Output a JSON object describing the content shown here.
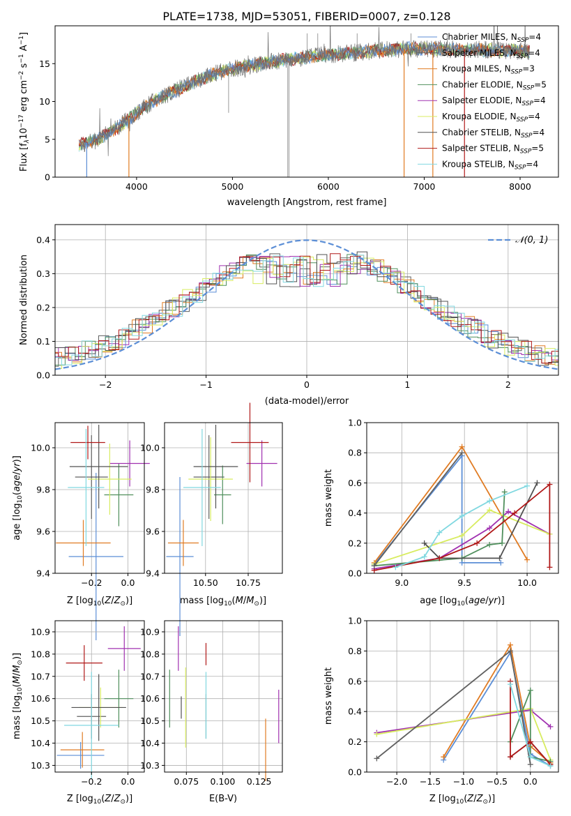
{
  "title": "PLATE=1738, MJD=53051, FIBERID=0007, z=0.128",
  "colors": {
    "chabrier_miles": "#5b8ed6",
    "salpeter_miles": "#606060",
    "kroupa_miles": "#e07b22",
    "chabrier_elodie": "#4f8f5c",
    "salpeter_elodie": "#a030b0",
    "kroupa_elodie": "#d8ec60",
    "chabrier_stelib": "#505050",
    "salpeter_stelib": "#b01818",
    "kroupa_stelib": "#80d8e0",
    "spectrum": "#707070",
    "normal": "#5b8ed6",
    "grid": "#b0b0b0"
  },
  "chart_data": [
    {
      "type": "line",
      "name": "spectrum",
      "title": "PLATE=1738, MJD=53051, FIBERID=0007, z=0.128",
      "xlabel": "wavelength [Angstrom, rest frame]",
      "ylabel_parts": [
        "Flux [f",
        "λ",
        "10",
        "−17",
        " erg cm",
        "−2",
        " s",
        "−1",
        " A",
        "−1",
        "]"
      ],
      "xlim": [
        3150,
        8400
      ],
      "ylim": [
        0,
        20
      ],
      "xticks": [
        4000,
        5000,
        6000,
        7000,
        8000
      ],
      "yticks": [
        0,
        5,
        10,
        15
      ],
      "legend_position": "right",
      "legend": [
        {
          "key": "chabrier_miles",
          "label": "Chabrier MILES, N",
          "sub": "SSP",
          "val": "=4"
        },
        {
          "key": "salpeter_miles",
          "label": "Salpeter MILES, N",
          "sub": "SSP",
          "val": "=4"
        },
        {
          "key": "kroupa_miles",
          "label": "Kroupa MILES, N",
          "sub": "SSP",
          "val": "=3"
        },
        {
          "key": "chabrier_elodie",
          "label": "Chabrier ELODIE, N",
          "sub": "SSP",
          "val": "=5"
        },
        {
          "key": "salpeter_elodie",
          "label": "Salpeter ELODIE, N",
          "sub": "SSP",
          "val": "=4"
        },
        {
          "key": "kroupa_elodie",
          "label": "Kroupa ELODIE, N",
          "sub": "SSP",
          "val": "=4"
        },
        {
          "key": "chabrier_stelib",
          "label": "Chabrier STELIB, N",
          "sub": "SSP",
          "val": "=4"
        },
        {
          "key": "salpeter_stelib",
          "label": "Salpeter STELIB, N",
          "sub": "SSP",
          "val": "=5"
        },
        {
          "key": "kroupa_stelib",
          "label": "Kroupa STELIB, N",
          "sub": "SSP",
          "val": "=4"
        }
      ],
      "continuum": {
        "x": [
          3400,
          3600,
          3800,
          4000,
          4200,
          4500,
          4800,
          5000,
          5300,
          5600,
          6000,
          6400,
          6800,
          7200,
          7600,
          8000,
          8100
        ],
        "y": [
          4.2,
          5.0,
          6.5,
          8.5,
          10.2,
          12.0,
          13.6,
          14.3,
          15.0,
          15.6,
          16.2,
          16.6,
          17.0,
          16.9,
          16.8,
          16.7,
          16.6
        ]
      },
      "drops": [
        {
          "model": "chabrier_miles",
          "x": 3480
        },
        {
          "model": "kroupa_miles",
          "x": 3920
        },
        {
          "model": "kroupa_miles",
          "x": 6790
        },
        {
          "model": "salpeter_stelib",
          "x": 7420
        },
        {
          "model": "kroupa_miles",
          "x": 7090
        }
      ]
    },
    {
      "type": "bar",
      "name": "residual histogram",
      "xlabel": "(data-model)/error",
      "ylabel": "Normed distribution",
      "xlim": [
        -2.5,
        2.5
      ],
      "ylim": [
        0,
        0.445
      ],
      "xticks": [
        -2,
        -1,
        0,
        1,
        2
      ],
      "yticks": [
        0.0,
        0.1,
        0.2,
        0.3,
        0.4
      ],
      "bin_width": 0.1,
      "legend": {
        "label": "𝒩(0, 1)",
        "position": "top-right"
      }
    },
    {
      "type": "scatter",
      "name": "age vs Z",
      "xlabel": "Z [log10(Z/Z☉)]",
      "ylabel": "age [log10(age/yr)]",
      "xlim": [
        -0.4,
        0.09
      ],
      "ylim": [
        9.4,
        10.12
      ],
      "xticks": [
        -0.2,
        0.0
      ],
      "yticks": [
        9.4,
        9.6,
        9.8,
        10.0
      ],
      "points": [
        {
          "model": "chabrier_miles",
          "x": -0.175,
          "xerr": 0.15,
          "y": 9.48,
          "yerr": 0.4
        },
        {
          "model": "salpeter_miles",
          "x": -0.2,
          "xerr": 0.09,
          "y": 9.86,
          "yerr": 0.2
        },
        {
          "model": "kroupa_miles",
          "x": -0.245,
          "xerr": 0.15,
          "y": 9.545,
          "yerr": 0.11
        },
        {
          "model": "chabrier_elodie",
          "x": -0.05,
          "xerr": 0.08,
          "y": 9.775,
          "yerr": 0.15
        },
        {
          "model": "salpeter_elodie",
          "x": 0.01,
          "xerr": 0.11,
          "y": 9.925,
          "yerr": 0.11
        },
        {
          "model": "kroupa_elodie",
          "x": -0.1,
          "xerr": 0.12,
          "y": 9.85,
          "yerr": 0.17
        },
        {
          "model": "chabrier_stelib",
          "x": -0.16,
          "xerr": 0.16,
          "y": 9.91,
          "yerr": 0.2
        },
        {
          "model": "salpeter_stelib",
          "x": -0.22,
          "xerr": 0.095,
          "y": 10.025,
          "yerr": 0.08
        },
        {
          "model": "kroupa_stelib",
          "x": -0.23,
          "xerr": 0.1,
          "y": 9.81,
          "yerr": 0.28
        }
      ]
    },
    {
      "type": "scatter",
      "name": "age vs mass",
      "xlabel": "mass [log10(M/M☉)]",
      "ylabel": "",
      "xlim": [
        10.26,
        10.95
      ],
      "ylim": [
        9.4,
        10.12
      ],
      "xticks": [
        10.5,
        10.75
      ],
      "yticks": [
        9.4,
        9.6,
        9.8,
        10.0
      ],
      "points": [
        {
          "model": "chabrier_miles",
          "x": 10.35,
          "xerr": 0.08,
          "y": 9.48,
          "yerr": 0.38
        },
        {
          "model": "salpeter_miles",
          "x": 10.52,
          "xerr": 0.09,
          "y": 9.86,
          "yerr": 0.2
        },
        {
          "model": "kroupa_miles",
          "x": 10.37,
          "xerr": 0.09,
          "y": 9.545,
          "yerr": 0.11
        },
        {
          "model": "chabrier_elodie",
          "x": 10.6,
          "xerr": 0.05,
          "y": 9.775,
          "yerr": 0.14
        },
        {
          "model": "salpeter_elodie",
          "x": 10.83,
          "xerr": 0.09,
          "y": 9.925,
          "yerr": 0.11
        },
        {
          "model": "kroupa_elodie",
          "x": 10.53,
          "xerr": 0.13,
          "y": 9.85,
          "yerr": 0.2
        },
        {
          "model": "chabrier_stelib",
          "x": 10.56,
          "xerr": 0.13,
          "y": 9.91,
          "yerr": 0.2
        },
        {
          "model": "salpeter_stelib",
          "x": 10.76,
          "xerr": 0.11,
          "y": 10.025,
          "yerr": 0.19
        },
        {
          "model": "kroupa_stelib",
          "x": 10.48,
          "xerr": 0.11,
          "y": 9.81,
          "yerr": 0.28
        }
      ]
    },
    {
      "type": "line",
      "name": "mass weight vs age",
      "xlabel": "age [log10(age/yr)]",
      "ylabel": "mass weight",
      "xlim": [
        8.72,
        10.25
      ],
      "ylim": [
        0,
        1.0
      ],
      "xticks": [
        9.0,
        9.5,
        10.0
      ],
      "yticks": [
        0.0,
        0.2,
        0.4,
        0.6,
        0.8,
        1.0
      ],
      "series": [
        {
          "model": "chabrier_miles",
          "x": [
            8.78,
            9.48,
            9.48,
            9.79
          ],
          "y": [
            0.06,
            0.78,
            0.07,
            0.07
          ]
        },
        {
          "model": "kroupa_miles",
          "x": [
            8.78,
            9.48,
            10.0
          ],
          "y": [
            0.07,
            0.84,
            0.09
          ]
        },
        {
          "model": "salpeter_elodie",
          "x": [
            8.78,
            9.3,
            9.7,
            9.85,
            10.18
          ],
          "y": [
            0.03,
            0.1,
            0.3,
            0.41,
            0.26
          ]
        },
        {
          "model": "kroupa_elodie",
          "x": [
            8.78,
            9.48,
            9.7,
            10.18
          ],
          "y": [
            0.06,
            0.25,
            0.42,
            0.26
          ]
        },
        {
          "model": "chabrier_elodie",
          "x": [
            8.78,
            9.48,
            9.7,
            9.8,
            9.82
          ],
          "y": [
            0.05,
            0.1,
            0.19,
            0.2,
            0.54
          ]
        },
        {
          "model": "chabrier_stelib",
          "x": [
            9.18,
            9.3,
            9.78,
            10.08
          ],
          "y": [
            0.2,
            0.1,
            0.1,
            0.6
          ]
        },
        {
          "model": "salpeter_stelib",
          "x": [
            8.78,
            9.3,
            9.6,
            9.9,
            10.18,
            10.18
          ],
          "y": [
            0.02,
            0.1,
            0.2,
            0.4,
            0.59,
            0.04
          ]
        },
        {
          "model": "kroupa_stelib",
          "x": [
            8.95,
            9.18,
            9.3,
            9.48,
            9.7,
            10.0
          ],
          "y": [
            0.04,
            0.11,
            0.27,
            0.38,
            0.48,
            0.58
          ]
        },
        {
          "model": "salpeter_miles",
          "x": [
            8.78,
            9.48
          ],
          "y": [
            0.05,
            0.8
          ]
        }
      ]
    },
    {
      "type": "scatter",
      "name": "mass vs Z",
      "xlabel": "Z [log10(Z/Z☉)]",
      "ylabel": "mass [log10(M/M☉)]",
      "xlim": [
        -0.4,
        0.09
      ],
      "ylim": [
        10.27,
        10.95
      ],
      "xticks": [
        -0.2,
        0.0
      ],
      "yticks": [
        10.3,
        10.4,
        10.5,
        10.6,
        10.7,
        10.8,
        10.9
      ],
      "points": [
        {
          "model": "chabrier_miles",
          "x": -0.26,
          "xerr": 0.13,
          "y": 10.345,
          "yerr": 0.06
        },
        {
          "model": "salpeter_miles",
          "x": -0.2,
          "xerr": 0.08,
          "y": 10.52,
          "yerr": 0.1
        },
        {
          "model": "kroupa_miles",
          "x": -0.25,
          "xerr": 0.12,
          "y": 10.37,
          "yerr": 0.08
        },
        {
          "model": "chabrier_elodie",
          "x": -0.05,
          "xerr": 0.08,
          "y": 10.6,
          "yerr": 0.13
        },
        {
          "model": "salpeter_elodie",
          "x": -0.02,
          "xerr": 0.09,
          "y": 10.825,
          "yerr": 0.1
        },
        {
          "model": "kroupa_elodie",
          "x": -0.15,
          "xerr": 0.12,
          "y": 10.56,
          "yerr": 0.09
        },
        {
          "model": "chabrier_stelib",
          "x": -0.16,
          "xerr": 0.15,
          "y": 10.56,
          "yerr": 0.15
        },
        {
          "model": "salpeter_stelib",
          "x": -0.24,
          "xerr": 0.1,
          "y": 10.76,
          "yerr": 0.08
        },
        {
          "model": "kroupa_stelib",
          "x": -0.2,
          "xerr": 0.15,
          "y": 10.48,
          "yerr": 0.24
        }
      ]
    },
    {
      "type": "scatter",
      "name": "mass vs E(B-V)",
      "xlabel": "E(B-V)",
      "ylabel": "",
      "xlim": [
        0.06,
        0.141
      ],
      "ylim": [
        10.27,
        10.95
      ],
      "xticks": [
        0.075,
        0.1,
        0.125
      ],
      "xtick_labels": [
        "0.075",
        "0.100",
        "0.125"
      ],
      "yticks": [
        10.3,
        10.4,
        10.5,
        10.6,
        10.7,
        10.8,
        10.9
      ],
      "points": [
        {
          "model": "chabrier_miles",
          "y": 10.35,
          "yerr": 0.0,
          "x": 0.0645
        },
        {
          "model": "salpeter_miles",
          "y": 10.52,
          "yerr": 0.1,
          "x": 0.0885
        },
        {
          "model": "kroupa_miles",
          "y": 10.37,
          "yerr": 0.14,
          "x": 0.1295
        },
        {
          "model": "chabrier_elodie",
          "y": 10.6,
          "yerr": 0.13,
          "x": 0.0635
        },
        {
          "model": "salpeter_elodie",
          "y": 10.825,
          "yerr": 0.1,
          "x": 0.0695
        },
        {
          "model": "kroupa_elodie",
          "y": 10.56,
          "yerr": 0.18,
          "x": 0.0745
        },
        {
          "model": "chabrier_stelib",
          "y": 10.56,
          "yerr": 0.05,
          "x": 0.0715
        },
        {
          "model": "salpeter_stelib",
          "y": 10.8,
          "yerr": 0.05,
          "x": 0.0885
        },
        {
          "model": "kroupa_stelib",
          "y": 10.57,
          "yerr": 0.15,
          "x": 0.0885
        },
        {
          "model": "salpeter_elodie",
          "y": 10.52,
          "yerr": 0.12,
          "x": 0.1385
        }
      ]
    },
    {
      "type": "line",
      "name": "mass weight vs Z",
      "xlabel": "Z [log10(Z/Z☉)]",
      "ylabel": "mass weight",
      "xlim": [
        -2.45,
        0.42
      ],
      "ylim": [
        0,
        1.0
      ],
      "xticks": [
        -2.0,
        -1.5,
        -1.0,
        -0.5,
        0.0
      ],
      "yticks": [
        0.0,
        0.2,
        0.4,
        0.6,
        0.8,
        1.0
      ],
      "series": [
        {
          "model": "chabrier_miles",
          "x": [
            -1.3,
            -0.3,
            0.0,
            0.3
          ],
          "y": [
            0.08,
            0.79,
            0.12,
            0.04
          ]
        },
        {
          "model": "kroupa_miles",
          "x": [
            -1.3,
            -0.3,
            0.0,
            0.3
          ],
          "y": [
            0.1,
            0.84,
            0.17,
            0.06
          ]
        },
        {
          "model": "salpeter_elodie",
          "x": [
            -2.3,
            0.0,
            0.3
          ],
          "y": [
            0.26,
            0.41,
            0.3
          ]
        },
        {
          "model": "kroupa_elodie",
          "x": [
            -2.3,
            0.0,
            0.3
          ],
          "y": [
            0.25,
            0.42,
            0.08
          ]
        },
        {
          "model": "salpeter_miles",
          "x": [
            -2.3,
            -0.3,
            0.0
          ],
          "y": [
            0.09,
            0.8,
            0.05
          ]
        },
        {
          "model": "chabrier_elodie",
          "x": [
            -0.3,
            0.0,
            0.0,
            0.3
          ],
          "y": [
            0.2,
            0.54,
            0.1,
            0.07
          ]
        },
        {
          "model": "chabrier_stelib",
          "x": [
            -0.3,
            0.0,
            0.3
          ],
          "y": [
            0.1,
            0.2,
            0.05
          ]
        },
        {
          "model": "salpeter_stelib",
          "x": [
            -0.3,
            -0.3,
            0.0,
            0.3
          ],
          "y": [
            0.6,
            0.1,
            0.2,
            0.05
          ]
        },
        {
          "model": "kroupa_stelib",
          "x": [
            -0.3,
            0.0,
            0.3
          ],
          "y": [
            0.58,
            0.1,
            0.04
          ]
        }
      ]
    }
  ]
}
